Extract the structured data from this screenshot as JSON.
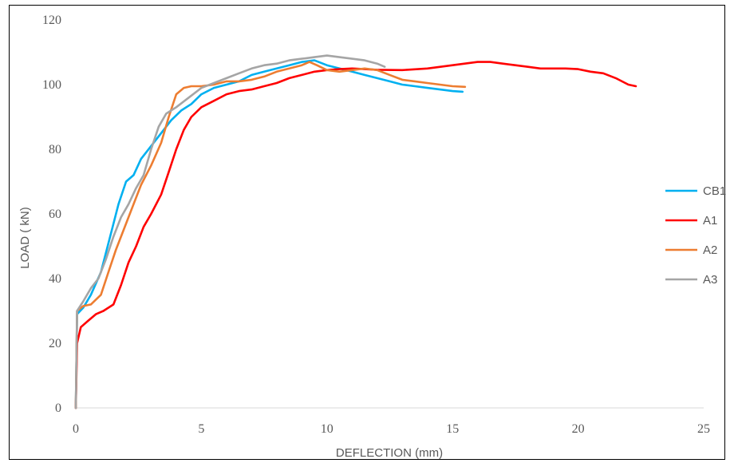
{
  "chart_data": {
    "type": "line",
    "title": "",
    "xlabel": "DEFLECTION (mm)",
    "ylabel": "LOAD ( kN)",
    "xlim": [
      0,
      25
    ],
    "ylim": [
      0,
      120
    ],
    "x_ticks": [
      "0",
      "5",
      "10",
      "15",
      "20",
      "25"
    ],
    "y_ticks": [
      "0",
      "20",
      "40",
      "60",
      "80",
      "100",
      "120"
    ],
    "grid": false,
    "legend": "right",
    "series": [
      {
        "name": "CB1",
        "color": "#00B0F0",
        "points": [
          [
            0,
            0
          ],
          [
            0.05,
            29
          ],
          [
            0.3,
            31
          ],
          [
            0.6,
            35
          ],
          [
            1.0,
            42
          ],
          [
            1.4,
            54
          ],
          [
            1.7,
            63
          ],
          [
            2.0,
            70
          ],
          [
            2.3,
            72
          ],
          [
            2.6,
            77
          ],
          [
            3.0,
            81
          ],
          [
            3.4,
            85
          ],
          [
            3.8,
            89
          ],
          [
            4.2,
            92
          ],
          [
            4.6,
            94
          ],
          [
            5.0,
            97
          ],
          [
            5.5,
            99
          ],
          [
            6.0,
            100
          ],
          [
            6.5,
            101
          ],
          [
            7.0,
            103
          ],
          [
            7.5,
            104
          ],
          [
            8.0,
            105
          ],
          [
            8.5,
            106
          ],
          [
            9.0,
            107
          ],
          [
            9.5,
            107.5
          ],
          [
            10.0,
            106
          ],
          [
            10.5,
            105
          ],
          [
            11.0,
            104
          ],
          [
            11.5,
            103
          ],
          [
            12.0,
            102
          ],
          [
            12.5,
            101
          ],
          [
            13.0,
            100
          ],
          [
            13.5,
            99.5
          ],
          [
            14.0,
            99
          ],
          [
            14.5,
            98.5
          ],
          [
            15.0,
            98
          ],
          [
            15.4,
            97.8
          ]
        ]
      },
      {
        "name": "A1",
        "color": "#FF0000",
        "points": [
          [
            0,
            0
          ],
          [
            0.05,
            20
          ],
          [
            0.2,
            25
          ],
          [
            0.5,
            27
          ],
          [
            0.8,
            29
          ],
          [
            1.1,
            30
          ],
          [
            1.5,
            32
          ],
          [
            1.8,
            38
          ],
          [
            2.1,
            45
          ],
          [
            2.4,
            50
          ],
          [
            2.7,
            56
          ],
          [
            3.0,
            60
          ],
          [
            3.4,
            66
          ],
          [
            3.7,
            73
          ],
          [
            4.0,
            80
          ],
          [
            4.3,
            86
          ],
          [
            4.6,
            90
          ],
          [
            5.0,
            93
          ],
          [
            5.5,
            95
          ],
          [
            6.0,
            97
          ],
          [
            6.5,
            98
          ],
          [
            7.0,
            98.5
          ],
          [
            7.5,
            99.5
          ],
          [
            8.0,
            100.5
          ],
          [
            8.5,
            102
          ],
          [
            9.0,
            103
          ],
          [
            9.5,
            104
          ],
          [
            10.0,
            104.5
          ],
          [
            10.5,
            104.8
          ],
          [
            11.0,
            105
          ],
          [
            11.5,
            104.8
          ],
          [
            12.0,
            104.6
          ],
          [
            13.0,
            104.5
          ],
          [
            14.0,
            105
          ],
          [
            15.0,
            106
          ],
          [
            16.0,
            107
          ],
          [
            16.5,
            107
          ],
          [
            17.0,
            106.5
          ],
          [
            17.5,
            106
          ],
          [
            18.0,
            105.5
          ],
          [
            18.5,
            105
          ],
          [
            19.0,
            105
          ],
          [
            19.5,
            105
          ],
          [
            20.0,
            104.8
          ],
          [
            20.5,
            104
          ],
          [
            21.0,
            103.5
          ],
          [
            21.5,
            102
          ],
          [
            22.0,
            100
          ],
          [
            22.3,
            99.5
          ]
        ]
      },
      {
        "name": "A2",
        "color": "#ED7D31",
        "points": [
          [
            0,
            0
          ],
          [
            0.05,
            30
          ],
          [
            0.3,
            31.5
          ],
          [
            0.6,
            32
          ],
          [
            1.0,
            35
          ],
          [
            1.3,
            42
          ],
          [
            1.6,
            49
          ],
          [
            2.0,
            57
          ],
          [
            2.3,
            63
          ],
          [
            2.6,
            69
          ],
          [
            3.0,
            75
          ],
          [
            3.4,
            82
          ],
          [
            3.7,
            90
          ],
          [
            4.0,
            97
          ],
          [
            4.3,
            99
          ],
          [
            4.6,
            99.5
          ],
          [
            5.0,
            99.5
          ],
          [
            5.5,
            100
          ],
          [
            6.0,
            101
          ],
          [
            6.5,
            101
          ],
          [
            7.0,
            101.5
          ],
          [
            7.5,
            102.5
          ],
          [
            8.0,
            104
          ],
          [
            8.5,
            105
          ],
          [
            9.0,
            106
          ],
          [
            9.3,
            107
          ],
          [
            9.6,
            106
          ],
          [
            10.0,
            104.5
          ],
          [
            10.5,
            104
          ],
          [
            11.0,
            104.5
          ],
          [
            11.5,
            105
          ],
          [
            12.0,
            104.5
          ],
          [
            12.5,
            103
          ],
          [
            13.0,
            101.5
          ],
          [
            13.5,
            101
          ],
          [
            14.0,
            100.5
          ],
          [
            14.5,
            100
          ],
          [
            15.0,
            99.5
          ],
          [
            15.5,
            99.3
          ]
        ]
      },
      {
        "name": "A3",
        "color": "#A5A5A5",
        "points": [
          [
            0,
            0
          ],
          [
            0.05,
            30
          ],
          [
            0.3,
            33
          ],
          [
            0.6,
            37
          ],
          [
            0.9,
            40
          ],
          [
            1.2,
            46
          ],
          [
            1.5,
            53
          ],
          [
            1.8,
            59
          ],
          [
            2.1,
            63
          ],
          [
            2.4,
            68
          ],
          [
            2.7,
            72
          ],
          [
            3.0,
            80
          ],
          [
            3.3,
            87
          ],
          [
            3.6,
            91
          ],
          [
            4.0,
            93
          ],
          [
            4.5,
            96
          ],
          [
            5.0,
            99
          ],
          [
            5.5,
            100.5
          ],
          [
            6.0,
            102
          ],
          [
            6.5,
            103.5
          ],
          [
            7.0,
            105
          ],
          [
            7.5,
            106
          ],
          [
            8.0,
            106.5
          ],
          [
            8.5,
            107.5
          ],
          [
            9.0,
            108
          ],
          [
            9.5,
            108.5
          ],
          [
            10.0,
            109
          ],
          [
            10.5,
            108.5
          ],
          [
            11.0,
            108
          ],
          [
            11.5,
            107.5
          ],
          [
            12.0,
            106.5
          ],
          [
            12.3,
            105.5
          ]
        ]
      }
    ]
  }
}
